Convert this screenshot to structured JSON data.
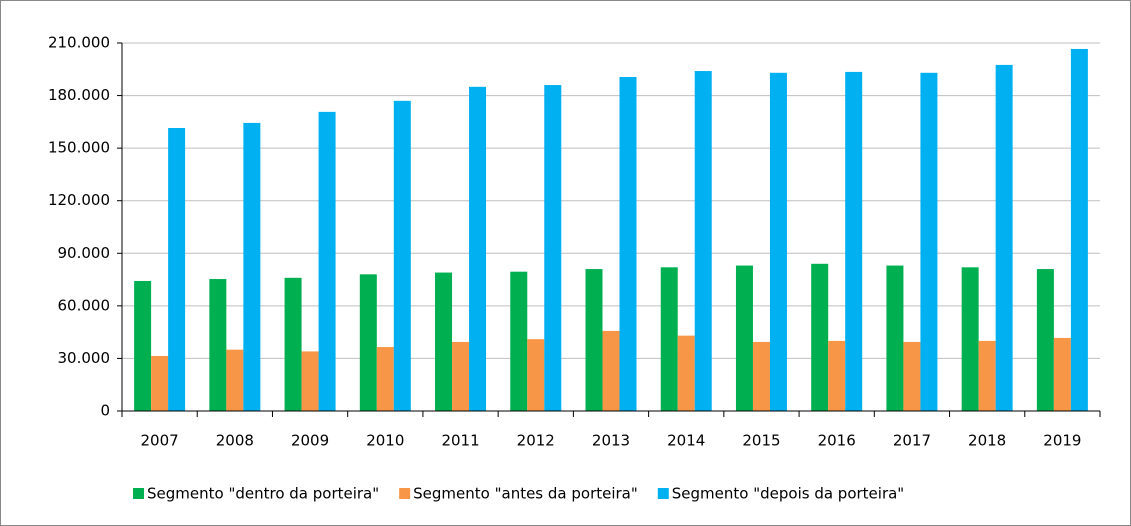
{
  "chart_data": {
    "type": "bar",
    "categories": [
      "2007",
      "2008",
      "2009",
      "2010",
      "2011",
      "2012",
      "2013",
      "2014",
      "2015",
      "2016",
      "2017",
      "2018",
      "2019"
    ],
    "series": [
      {
        "name": "Segmento \"dentro da porteira\"",
        "color": "#00b050",
        "values": [
          74200,
          75300,
          76000,
          78000,
          79000,
          79500,
          81000,
          82000,
          83000,
          84000,
          83000,
          82000,
          81000
        ]
      },
      {
        "name": "Segmento \"antes da porteira\"",
        "color": "#f79646",
        "values": [
          31400,
          35000,
          34000,
          36500,
          39400,
          41000,
          45700,
          43000,
          39400,
          40000,
          39400,
          40000,
          41700
        ]
      },
      {
        "name": "Segmento \"depois da porteira\"",
        "color": "#00b0f0",
        "values": [
          161500,
          164400,
          170700,
          177000,
          185000,
          186000,
          190600,
          194000,
          193000,
          193500,
          193000,
          197500,
          206600
        ]
      }
    ],
    "ylim": [
      0,
      210000
    ],
    "yticks": [
      0,
      {
        "value": 30000,
        "label": "30.000"
      },
      {
        "value": 60000,
        "label": "60.000"
      },
      {
        "value": 90000,
        "label": "90.000"
      },
      {
        "value": 120000,
        "label": "120.000"
      },
      {
        "value": 150000,
        "label": "150.000"
      },
      {
        "value": 180000,
        "label": "180.000"
      },
      {
        "value": 210000,
        "label": "210.000"
      }
    ],
    "grid": true
  }
}
